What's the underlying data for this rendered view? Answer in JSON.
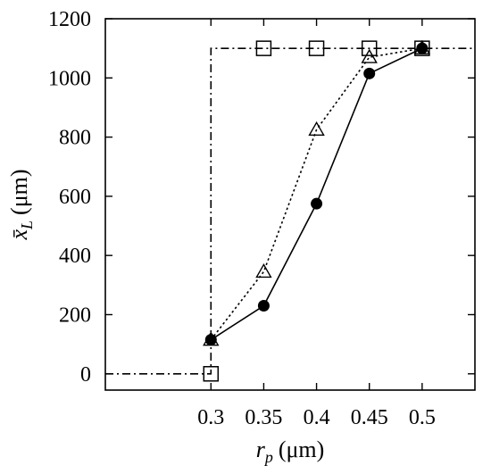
{
  "chart_data": {
    "type": "line",
    "xlabel": {
      "var": "r",
      "sub": "p",
      "unit": "(μm)"
    },
    "ylabel": {
      "var": "x̄",
      "sub": "L",
      "unit": "(μm)"
    },
    "xlim": [
      0.2,
      0.55
    ],
    "ylim": [
      -55,
      1200
    ],
    "xticks": [
      0.3,
      0.35,
      0.4,
      0.45,
      0.5
    ],
    "xtick_labels": [
      "0.3",
      "0.35",
      "0.4",
      "0.45",
      "0.5"
    ],
    "yticks": [
      0,
      200,
      400,
      600,
      800,
      1000,
      1200
    ],
    "ytick_labels": [
      "0",
      "200",
      "400",
      "600",
      "800",
      "1000",
      "1200"
    ],
    "grid": false,
    "legend": "none",
    "series": [
      {
        "marker": "circle-filled",
        "line": "solid",
        "x": [
          0.3,
          0.35,
          0.4,
          0.45,
          0.5
        ],
        "y": [
          115,
          230,
          575,
          1015,
          1100
        ]
      },
      {
        "marker": "triangle-open",
        "line": "dotted",
        "x": [
          0.3,
          0.35,
          0.4,
          0.45,
          0.5
        ],
        "y": [
          115,
          345,
          825,
          1070,
          1100
        ]
      },
      {
        "marker": "square-open",
        "line": "dashdot",
        "x": [
          0.2,
          0.3,
          0.3,
          0.35,
          0.4,
          0.45,
          0.5,
          0.55
        ],
        "y": [
          0,
          0,
          1100,
          1100,
          1100,
          1100,
          1100,
          1100
        ],
        "marker_x": [
          0.3,
          0.35,
          0.4,
          0.45,
          0.5
        ],
        "marker_y": [
          0,
          1100,
          1100,
          1100,
          1100
        ]
      }
    ]
  }
}
